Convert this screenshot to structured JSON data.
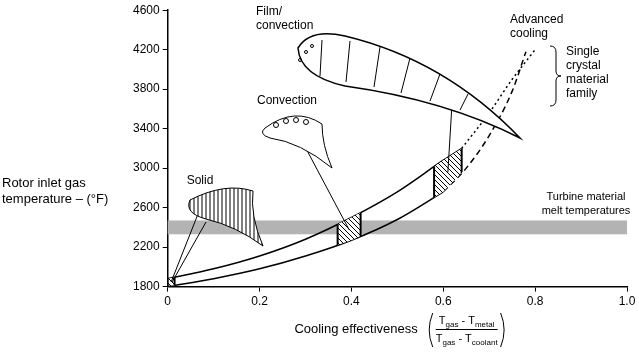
{
  "chart_data": {
    "type": "line",
    "y_label": [
      "Rotor inlet gas",
      "temperature – (°F)"
    ],
    "x_label": "Cooling effectiveness",
    "x_label_formula": {
      "numerator": "Tgas - Tmetal",
      "denominator": "Tgas - Tcoolant"
    },
    "xlim": [
      0,
      1
    ],
    "xticks": [
      0,
      0.2,
      0.4,
      0.6,
      0.8,
      {
        "value": 1,
        "label": "1.0"
      }
    ],
    "ylim": [
      1800,
      4600
    ],
    "yticks": [
      1800,
      2200,
      2600,
      3000,
      3400,
      3800,
      4200,
      4600
    ],
    "grid": false,
    "series": [
      {
        "x": [
          0,
          0.1,
          0.2,
          0.3,
          0.4,
          0.5,
          0.6
        ],
        "values": [
          1800,
          1880,
          1980,
          2110,
          2270,
          2480,
          2760
        ],
        "color": "#000000",
        "line_style": "solid"
      },
      {
        "x": [
          0,
          0.1,
          0.2,
          0.3,
          0.4,
          0.5,
          0.6,
          0.64
        ],
        "values": [
          1880,
          1980,
          2110,
          2280,
          2500,
          2760,
          3080,
          3200
        ],
        "color": "#000000",
        "line_style": "solid"
      },
      {
        "x": [
          0.6,
          0.65,
          0.7,
          0.75,
          0.78
        ],
        "values": [
          2760,
          3000,
          3330,
          3780,
          4180
        ],
        "color": "#000000",
        "line_style": "dashed"
      },
      {
        "x": [
          0.64,
          0.7,
          0.75,
          0.8
        ],
        "values": [
          3200,
          3560,
          3900,
          4200
        ],
        "color": "#000000",
        "line_style": "dotted"
      }
    ],
    "hatched_regions": [
      [
        0,
        0.015
      ],
      [
        0.37,
        0.42
      ],
      [
        0.58,
        0.64
      ]
    ],
    "melt_band": [
      2330,
      2470
    ],
    "annotations": [
      "Solid",
      "Convection",
      "Film/\nconvection",
      "Advanced\ncooling",
      "Single\ncrystal\nmaterial\nfamily",
      "Turbine material\nmelt temperatures"
    ]
  }
}
